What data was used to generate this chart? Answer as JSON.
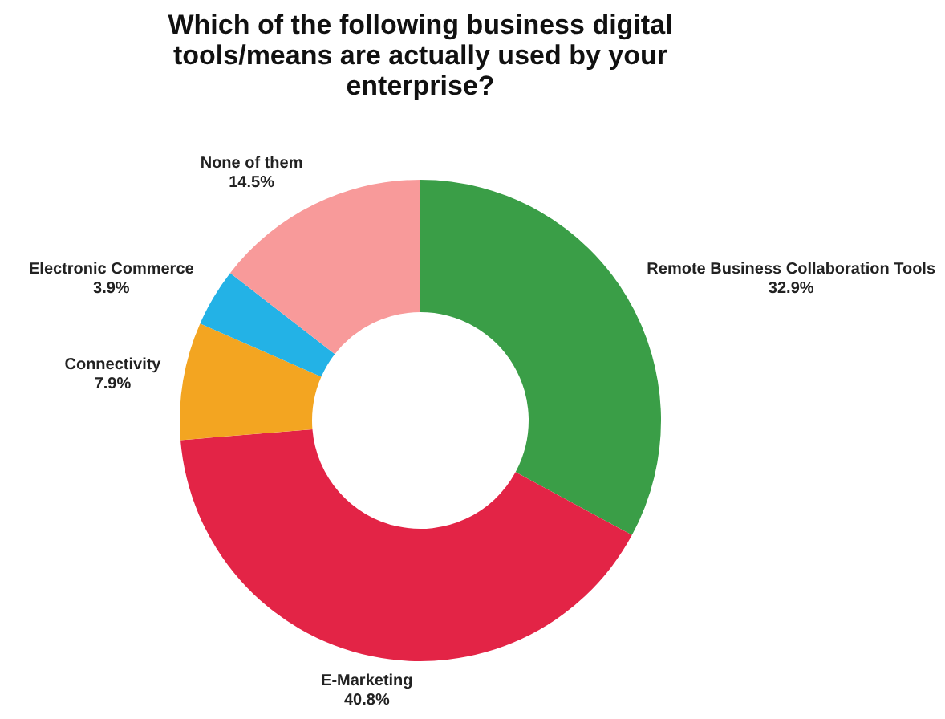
{
  "chart_data": {
    "type": "donut",
    "title": "Which of the following business digital tools/means are actually used by your enterprise?",
    "categories": [
      "Remote Business Collaboration Tools",
      "E-Marketing",
      "Connectivity",
      "Electronic Commerce",
      "None of them"
    ],
    "values": [
      32.9,
      40.8,
      7.9,
      3.9,
      14.5
    ],
    "value_labels": [
      "32.9%",
      "40.8%",
      "7.9%",
      "3.9%",
      "14.5%"
    ],
    "colors": [
      "#3a9e47",
      "#e32446",
      "#f3a521",
      "#23b2e6",
      "#f89a9a"
    ],
    "legend": false
  }
}
